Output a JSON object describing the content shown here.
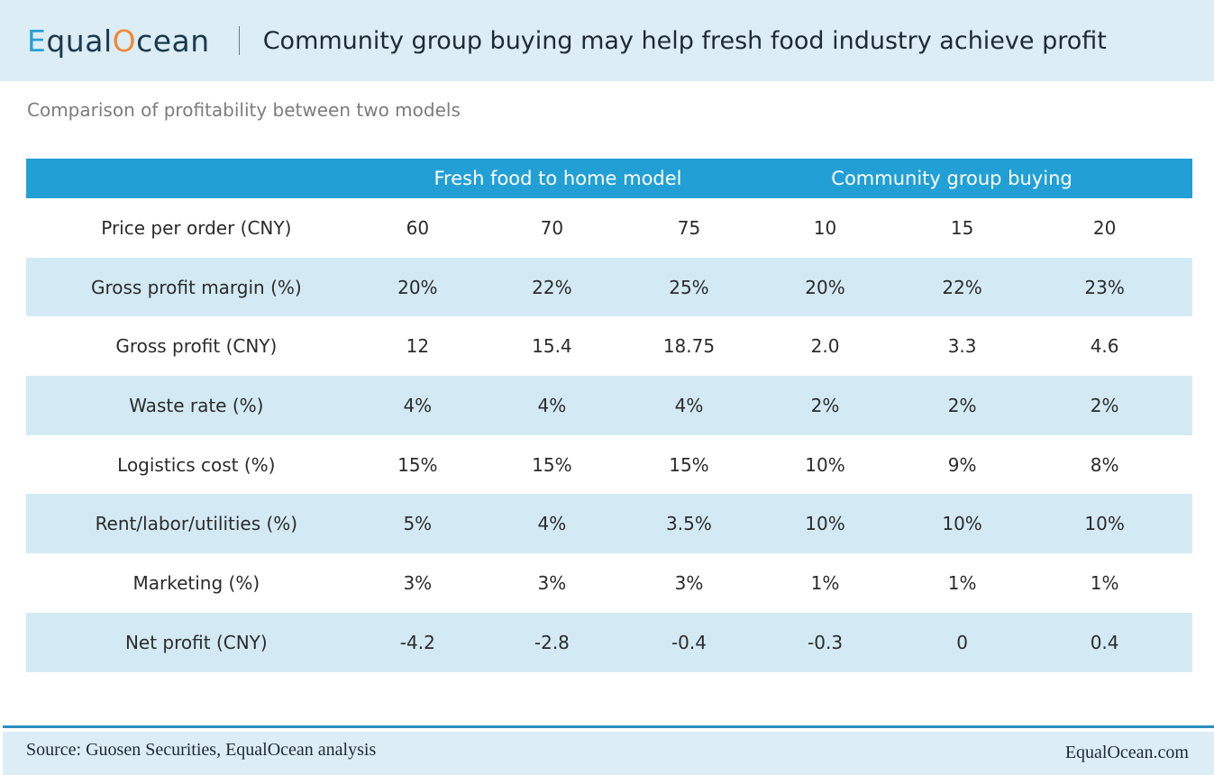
{
  "header": {
    "logo_e": "E",
    "logo_mid": "qual",
    "logo_o": "O",
    "logo_end": "cean",
    "title": "Community group buying may help fresh food industry achieve profit"
  },
  "subtitle": "Comparison of profitability between two models",
  "chart_data": {
    "type": "table",
    "groups": [
      {
        "name": "Fresh food to home model",
        "columns": 3
      },
      {
        "name": "Community group buying",
        "columns": 3
      }
    ],
    "rows": [
      {
        "label": "Price per order (CNY)",
        "values": [
          "60",
          "70",
          "75",
          "10",
          "15",
          "20"
        ]
      },
      {
        "label": "Gross profit margin (%)",
        "values": [
          "20%",
          "22%",
          "25%",
          "20%",
          "22%",
          "23%"
        ]
      },
      {
        "label": "Gross profit (CNY)",
        "values": [
          "12",
          "15.4",
          "18.75",
          "2.0",
          "3.3",
          "4.6"
        ]
      },
      {
        "label": "Waste rate (%)",
        "values": [
          "4%",
          "4%",
          "4%",
          "2%",
          "2%",
          "2%"
        ]
      },
      {
        "label": "Logistics cost (%)",
        "values": [
          "15%",
          "15%",
          "15%",
          "10%",
          "9%",
          "8%"
        ]
      },
      {
        "label": "Rent/labor/utilities (%)",
        "values": [
          "5%",
          "4%",
          "3.5%",
          "10%",
          "10%",
          "10%"
        ]
      },
      {
        "label": "Marketing (%)",
        "values": [
          "3%",
          "3%",
          "3%",
          "1%",
          "1%",
          "1%"
        ]
      },
      {
        "label": "Net profit (CNY)",
        "values": [
          "-4.2",
          "-2.8",
          "-0.4",
          "-0.3",
          "0",
          "0.4"
        ]
      }
    ]
  },
  "footer": {
    "source": "Source: Guosen Securities, EqualOcean analysis",
    "site": "EqualOcean.com"
  },
  "colors": {
    "header_bg": "#dcedf5",
    "group_header_bg": "#22a0d6",
    "alt_row_bg": "#d3eaf4",
    "logo_blue": "#26a0d6",
    "logo_orange": "#ef8a37"
  }
}
